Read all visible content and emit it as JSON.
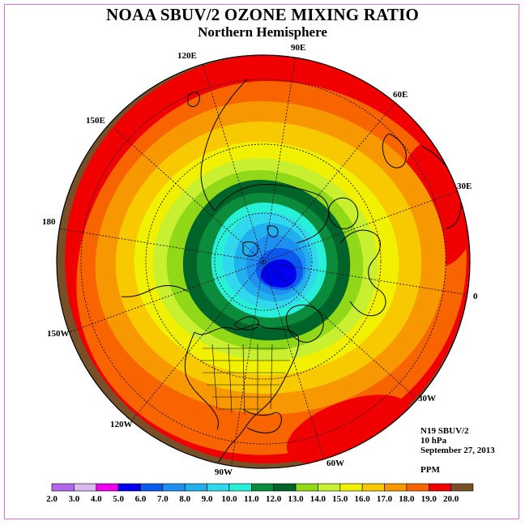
{
  "title": "NOAA SBUV/2 OZONE MIXING RATIO",
  "subtitle": "Northern Hemisphere",
  "longitude_labels": {
    "e90": "90E",
    "e120": "120E",
    "e60": "60E",
    "e150": "150E",
    "e30": "30E",
    "lon180": "180",
    "lon0": "0",
    "w150": "150W",
    "w30": "30W",
    "w120": "120W",
    "w60": "60W",
    "w90": "90W"
  },
  "info": {
    "instrument": "N19 SBUV/2",
    "level": "10 hPa",
    "date": "September 27, 2013",
    "units": "PPM"
  },
  "colorbar": {
    "ticks": [
      "2.0",
      "3.0",
      "4.0",
      "5.0",
      "6.0",
      "7.0",
      "8.0",
      "9.0",
      "10.0",
      "11.0",
      "12.0",
      "13.0",
      "14.0",
      "15.0",
      "16.0",
      "17.0",
      "18.0",
      "19.0",
      "20.0"
    ],
    "colors": [
      "#b266ee",
      "#dcb8f0",
      "#ee00ee",
      "#0000ee",
      "#0a5aee",
      "#1e90f0",
      "#20b0ee",
      "#30d8ee",
      "#28f0d8",
      "#0a8c3c",
      "#00642a",
      "#90d818",
      "#c8f030",
      "#f0f000",
      "#f8c800",
      "#f89800",
      "#f86400",
      "#f00000",
      "#785028"
    ]
  },
  "map_colors": {
    "background": "#ffffff",
    "outline": "#000000",
    "land_line": "#000000",
    "grid_line": "#000000"
  }
}
